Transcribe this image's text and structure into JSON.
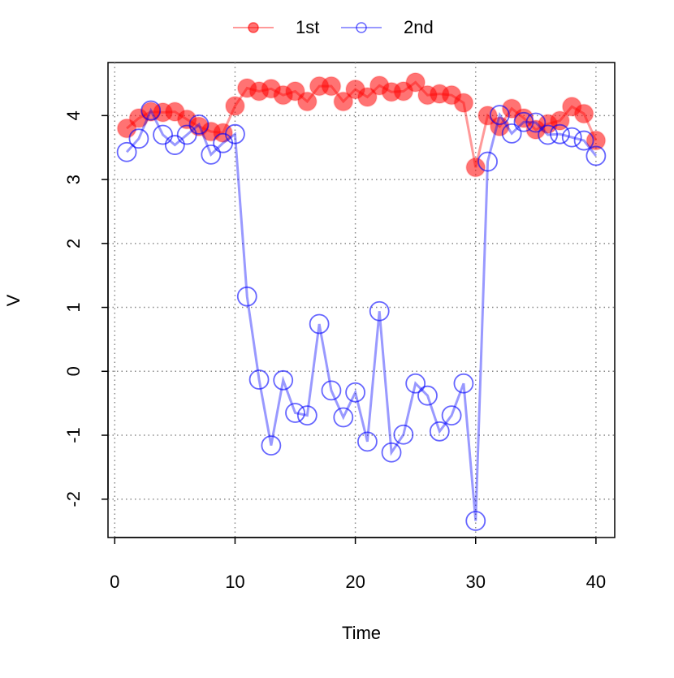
{
  "chart_data": {
    "type": "line",
    "x_label": "Time",
    "y_label": "V",
    "x": [
      1,
      2,
      3,
      4,
      5,
      6,
      7,
      8,
      9,
      10,
      11,
      12,
      13,
      14,
      15,
      16,
      17,
      18,
      19,
      20,
      21,
      22,
      23,
      24,
      25,
      26,
      27,
      28,
      29,
      30,
      31,
      32,
      33,
      34,
      35,
      36,
      37,
      38,
      39,
      40
    ],
    "series": [
      {
        "name": "1st",
        "color": "#ff0000",
        "filled": true,
        "values": [
          3.8,
          3.96,
          4.06,
          4.05,
          4.06,
          3.94,
          3.83,
          3.75,
          3.73,
          4.15,
          4.43,
          4.38,
          4.42,
          4.32,
          4.38,
          4.22,
          4.46,
          4.46,
          4.22,
          4.41,
          4.29,
          4.47,
          4.37,
          4.38,
          4.52,
          4.32,
          4.34,
          4.32,
          4.2,
          3.19,
          4.0,
          3.83,
          4.11,
          3.96,
          3.78,
          3.87,
          3.92,
          4.14,
          4.03,
          3.61
        ]
      },
      {
        "name": "2nd",
        "color": "#0000ff",
        "filled": false,
        "values": [
          3.43,
          3.64,
          4.08,
          3.7,
          3.54,
          3.7,
          3.86,
          3.39,
          3.57,
          3.71,
          1.17,
          -0.13,
          -1.16,
          -0.14,
          -0.65,
          -0.69,
          0.74,
          -0.3,
          -0.72,
          -0.33,
          -1.1,
          0.94,
          -1.27,
          -0.99,
          -0.19,
          -0.38,
          -0.94,
          -0.69,
          -0.19,
          -2.34,
          3.28,
          4.01,
          3.72,
          3.9,
          3.89,
          3.7,
          3.71,
          3.66,
          3.61,
          3.37
        ]
      }
    ],
    "xlim": [
      -0.56,
      41.56
    ],
    "xticks": [
      0,
      10,
      20,
      30,
      40
    ],
    "ylim": [
      -2.6,
      4.83
    ],
    "yticks": [
      -2,
      -1,
      0,
      1,
      2,
      3,
      4
    ],
    "grid": true,
    "legend": "top"
  }
}
